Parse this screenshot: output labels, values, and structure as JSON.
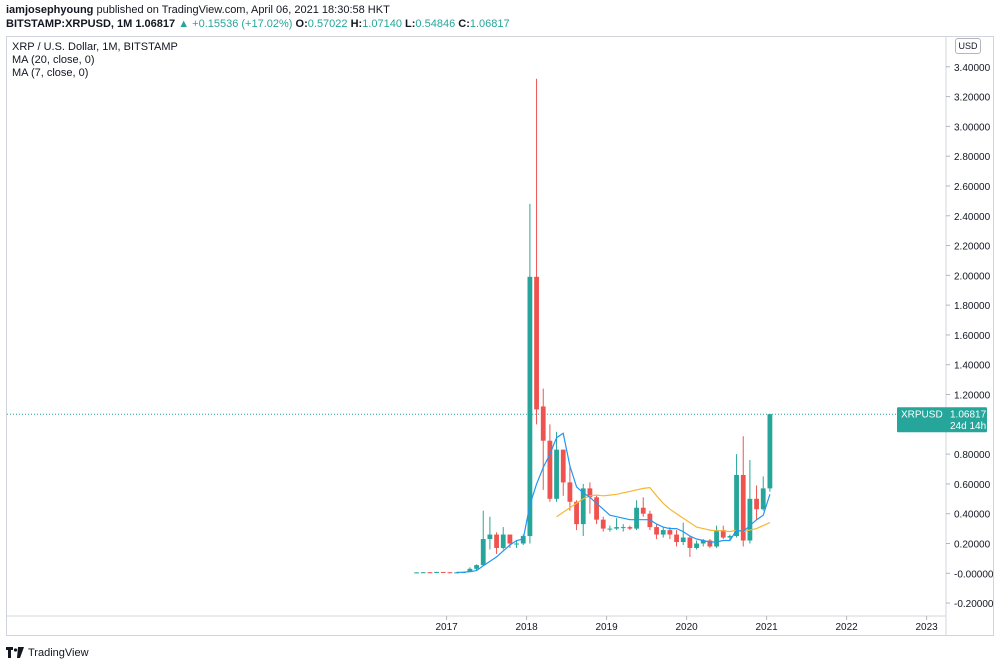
{
  "header": {
    "publisher": "iamjosephyoung",
    "published_text": "published on TradingView.com, April 06, 2021 18:30:58 HKT",
    "symbol": "BITSTAMP:XRPUSD, 1M",
    "last": "1.06817",
    "change": "+0.15536 (+17.02%)",
    "o_label": "O:",
    "o": "0.57022",
    "h_label": "H:",
    "h": "1.07140",
    "l_label": "L:",
    "l": "0.54846",
    "c_label": "C:",
    "c": "1.06817"
  },
  "legend": {
    "title": "XRP / U.S. Dollar, 1M, BITSTAMP",
    "ma1": "MA (20, close, 0)",
    "ma2": "MA (7, close, 0)"
  },
  "currency_badge": "USD",
  "price_tag": {
    "symbol": "XRPUSD",
    "price": "1.06817",
    "countdown": "24d 14h"
  },
  "footer": {
    "brand": "TradingView"
  },
  "colors": {
    "up": "#26a69a",
    "down": "#ef5350",
    "ma20": "#f7b731",
    "ma7": "#2196f3"
  },
  "chart_data": {
    "type": "candlestick",
    "title": "XRP / U.S. Dollar, 1M, BITSTAMP",
    "ylim": [
      -0.28,
      3.6
    ],
    "y_ticks": [
      3.4,
      3.2,
      3.0,
      2.8,
      2.6,
      2.4,
      2.2,
      2.0,
      1.8,
      1.6,
      1.4,
      1.2,
      1.0,
      0.8,
      0.6,
      0.4,
      0.2,
      0.0,
      -0.2
    ],
    "y_tick_labels": [
      "3.40000",
      "3.20000",
      "3.00000",
      "2.80000",
      "2.60000",
      "2.40000",
      "2.20000",
      "2.00000",
      "1.80000",
      "1.60000",
      "1.40000",
      "1.20000",
      "",
      "0.80000",
      "0.60000",
      "0.40000",
      "0.20000",
      "-0.00000",
      "-0.20000"
    ],
    "x_ticks": [
      "2017",
      "2018",
      "2019",
      "2020",
      "2021",
      "2022",
      "2023"
    ],
    "x_tick_year": [
      2017,
      2018,
      2019,
      2020,
      2021,
      2022,
      2023
    ],
    "start_year": 2016,
    "start_month": 8,
    "candles": [
      [
        0.006,
        0.007,
        0.005,
        0.006
      ],
      [
        0.006,
        0.008,
        0.005,
        0.007
      ],
      [
        0.007,
        0.008,
        0.005,
        0.006
      ],
      [
        0.006,
        0.01,
        0.005,
        0.009
      ],
      [
        0.009,
        0.009,
        0.006,
        0.007
      ],
      [
        0.007,
        0.008,
        0.005,
        0.006
      ],
      [
        0.006,
        0.007,
        0.005,
        0.006
      ],
      [
        0.006,
        0.01,
        0.005,
        0.008
      ],
      [
        0.008,
        0.04,
        0.008,
        0.03
      ],
      [
        0.03,
        0.06,
        0.02,
        0.055
      ],
      [
        0.055,
        0.42,
        0.05,
        0.23
      ],
      [
        0.23,
        0.38,
        0.16,
        0.26
      ],
      [
        0.26,
        0.275,
        0.13,
        0.17
      ],
      [
        0.17,
        0.31,
        0.16,
        0.26
      ],
      [
        0.26,
        0.26,
        0.17,
        0.2
      ],
      [
        0.2,
        0.22,
        0.17,
        0.2
      ],
      [
        0.2,
        0.26,
        0.19,
        0.25
      ],
      [
        0.25,
        2.48,
        0.2,
        1.99
      ],
      [
        1.99,
        3.32,
        1.0,
        1.1
      ],
      [
        1.12,
        1.24,
        0.56,
        0.89
      ],
      [
        0.89,
        1.0,
        0.48,
        0.5
      ],
      [
        0.5,
        0.95,
        0.48,
        0.83
      ],
      [
        0.83,
        0.83,
        0.52,
        0.61
      ],
      [
        0.61,
        0.72,
        0.42,
        0.48
      ],
      [
        0.48,
        0.49,
        0.29,
        0.33
      ],
      [
        0.33,
        0.6,
        0.25,
        0.57
      ],
      [
        0.57,
        0.61,
        0.4,
        0.51
      ],
      [
        0.51,
        0.52,
        0.33,
        0.36
      ],
      [
        0.36,
        0.38,
        0.28,
        0.3
      ],
      [
        0.3,
        0.32,
        0.28,
        0.3
      ],
      [
        0.3,
        0.37,
        0.29,
        0.31
      ],
      [
        0.31,
        0.33,
        0.28,
        0.31
      ],
      [
        0.31,
        0.32,
        0.29,
        0.3
      ],
      [
        0.3,
        0.49,
        0.29,
        0.44
      ],
      [
        0.44,
        0.51,
        0.38,
        0.4
      ],
      [
        0.4,
        0.42,
        0.29,
        0.31
      ],
      [
        0.31,
        0.33,
        0.23,
        0.26
      ],
      [
        0.26,
        0.31,
        0.24,
        0.29
      ],
      [
        0.29,
        0.31,
        0.23,
        0.26
      ],
      [
        0.26,
        0.29,
        0.18,
        0.21
      ],
      [
        0.21,
        0.34,
        0.19,
        0.24
      ],
      [
        0.24,
        0.25,
        0.11,
        0.17
      ],
      [
        0.17,
        0.22,
        0.16,
        0.2
      ],
      [
        0.2,
        0.23,
        0.18,
        0.22
      ],
      [
        0.22,
        0.23,
        0.17,
        0.18
      ],
      [
        0.18,
        0.32,
        0.17,
        0.29
      ],
      [
        0.29,
        0.32,
        0.23,
        0.24
      ],
      [
        0.24,
        0.26,
        0.22,
        0.25
      ],
      [
        0.25,
        0.8,
        0.24,
        0.66
      ],
      [
        0.66,
        0.92,
        0.18,
        0.22
      ],
      [
        0.22,
        0.76,
        0.2,
        0.5
      ],
      [
        0.5,
        0.59,
        0.36,
        0.43
      ],
      [
        0.43,
        0.65,
        0.42,
        0.57
      ],
      [
        0.57,
        1.071,
        0.548,
        1.068
      ]
    ],
    "ma20": [
      null,
      null,
      null,
      null,
      null,
      null,
      null,
      null,
      null,
      null,
      null,
      null,
      null,
      null,
      null,
      null,
      null,
      null,
      null,
      null,
      null,
      0.38,
      0.41,
      0.44,
      0.47,
      0.5,
      0.52,
      0.525,
      0.52,
      0.525,
      0.53,
      0.54,
      0.55,
      0.56,
      0.57,
      0.575,
      0.52,
      0.47,
      0.43,
      0.4,
      0.37,
      0.34,
      0.31,
      0.3,
      0.29,
      0.285,
      0.285,
      0.28,
      0.29,
      0.28,
      0.29,
      0.3,
      0.32,
      0.34
    ],
    "ma7": [
      null,
      null,
      null,
      null,
      null,
      null,
      0.006,
      0.007,
      0.011,
      0.018,
      0.05,
      0.08,
      0.11,
      0.15,
      0.19,
      0.22,
      0.23,
      0.46,
      0.6,
      0.71,
      0.8,
      0.91,
      0.94,
      0.72,
      0.58,
      0.54,
      0.51,
      0.47,
      0.43,
      0.39,
      0.38,
      0.37,
      0.36,
      0.36,
      0.36,
      0.36,
      0.33,
      0.31,
      0.3,
      0.3,
      0.28,
      0.25,
      0.23,
      0.22,
      0.21,
      0.21,
      0.22,
      0.22,
      0.29,
      0.28,
      0.32,
      0.36,
      0.39,
      0.53
    ]
  }
}
